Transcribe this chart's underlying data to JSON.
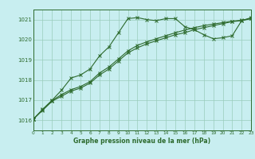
{
  "title": "Graphe pression niveau de la mer (hPa)",
  "background_color": "#c8eef0",
  "plot_bg_color": "#c8eef0",
  "grid_color": "#99ccbb",
  "line_color": "#2d6a2d",
  "xlim": [
    0,
    23
  ],
  "ylim": [
    1015.5,
    1021.5
  ],
  "yticks": [
    1016,
    1017,
    1018,
    1019,
    1020,
    1021
  ],
  "xticks": [
    0,
    1,
    2,
    3,
    4,
    5,
    6,
    7,
    8,
    9,
    10,
    11,
    12,
    13,
    14,
    15,
    16,
    17,
    18,
    19,
    20,
    21,
    22,
    23
  ],
  "line1_x": [
    0,
    1,
    2,
    3,
    4,
    5,
    6,
    7,
    8,
    9,
    10,
    11,
    12,
    13,
    14,
    15,
    16,
    17,
    18,
    19,
    20,
    21,
    22,
    23
  ],
  "line1_y": [
    1016.05,
    1016.55,
    1017.0,
    1017.5,
    1018.1,
    1018.25,
    1018.55,
    1019.2,
    1019.65,
    1020.35,
    1021.05,
    1021.1,
    1021.0,
    1020.95,
    1021.05,
    1021.05,
    1020.65,
    1020.5,
    1020.25,
    1020.05,
    1020.1,
    1020.2,
    1020.95,
    1021.1
  ],
  "line2_x": [
    0,
    1,
    2,
    3,
    4,
    5,
    6,
    7,
    8,
    9,
    10,
    11,
    12,
    13,
    14,
    15,
    16,
    17,
    18,
    19,
    20,
    21,
    22,
    23
  ],
  "line2_y": [
    1016.05,
    1016.5,
    1016.95,
    1017.2,
    1017.45,
    1017.6,
    1017.85,
    1018.25,
    1018.55,
    1018.95,
    1019.35,
    1019.6,
    1019.8,
    1019.95,
    1020.1,
    1020.25,
    1020.35,
    1020.5,
    1020.6,
    1020.7,
    1020.8,
    1020.9,
    1020.95,
    1021.05
  ],
  "line3_x": [
    0,
    1,
    2,
    3,
    4,
    5,
    6,
    7,
    8,
    9,
    10,
    11,
    12,
    13,
    14,
    15,
    16,
    17,
    18,
    19,
    20,
    21,
    22,
    23
  ],
  "line3_y": [
    1016.05,
    1016.52,
    1016.98,
    1017.28,
    1017.52,
    1017.68,
    1017.92,
    1018.35,
    1018.65,
    1019.05,
    1019.45,
    1019.72,
    1019.9,
    1020.05,
    1020.2,
    1020.35,
    1020.48,
    1020.6,
    1020.7,
    1020.78,
    1020.85,
    1020.92,
    1020.97,
    1021.05
  ]
}
